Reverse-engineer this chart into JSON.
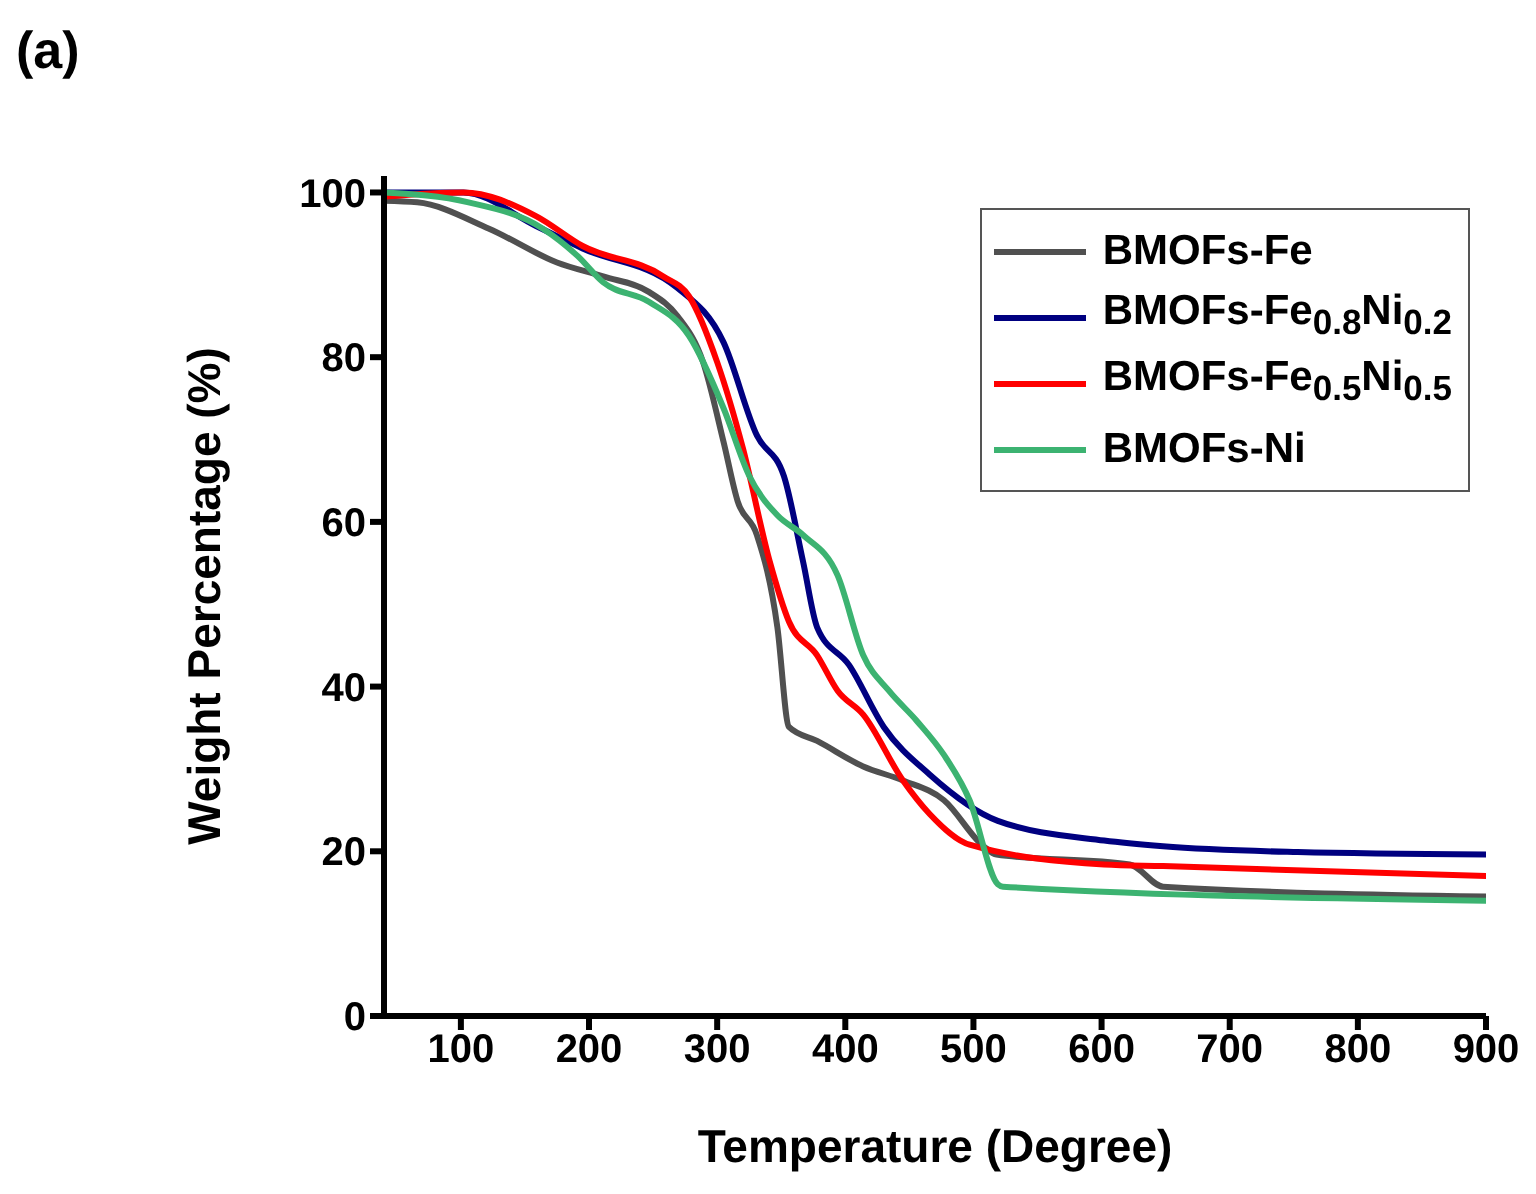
{
  "chart_data": {
    "type": "line",
    "title": "(a)",
    "xlabel": "Temperature (Degree)",
    "ylabel": "Weight Percentage (%)",
    "xlim": [
      40,
      900
    ],
    "ylim": [
      0,
      102
    ],
    "xticks": [
      100,
      200,
      300,
      400,
      500,
      600,
      700,
      800,
      900
    ],
    "yticks": [
      0,
      20,
      40,
      60,
      80,
      100
    ],
    "legend": "top right",
    "grid": false,
    "series": [
      {
        "name": "BMOFs-Fe",
        "color": "#505050",
        "x": [
          40,
          66,
          122,
          175,
          211,
          247,
          269,
          289,
          305,
          316,
          331,
          347,
          356,
          378,
          414,
          445,
          477,
          508,
          518,
          622,
          648,
          900
        ],
        "values": [
          99,
          98.8,
          95.6,
          91.5,
          89.8,
          87.9,
          85,
          79.4,
          69.7,
          62.5,
          58.4,
          47.2,
          35.1,
          33.4,
          30.3,
          28.6,
          26.2,
          20.6,
          19.6,
          18.4,
          15.7,
          14.5
        ]
      },
      {
        "name": "BMOFs-Fe$_{0.8}$Ni$_{0.2}$",
        "color": "#000080",
        "x": [
          40,
          102,
          159,
          195,
          269,
          305,
          331,
          352,
          367,
          378,
          403,
          430,
          466,
          519,
          602,
          648,
          753,
          900
        ],
        "values": [
          100,
          100,
          95.9,
          93.2,
          88.4,
          81.8,
          70.5,
          65.6,
          55.2,
          47.2,
          42.6,
          35.1,
          29.3,
          23.7,
          21.3,
          20.6,
          19.9,
          19.6
        ]
      },
      {
        "name": "BMOFs-Fe$_{0.5}$Ni$_{0.5}$",
        "color": "#ff0000",
        "x": [
          40,
          102,
          159,
          195,
          258,
          278,
          300,
          320,
          341,
          356,
          378,
          394,
          414,
          445,
          466,
          497,
          602,
          648,
          900
        ],
        "values": [
          99.5,
          100,
          97.1,
          93.5,
          89.8,
          87.4,
          79.4,
          69,
          55.2,
          47.9,
          43.8,
          39.5,
          36.6,
          28.6,
          24.5,
          20.8,
          18.4,
          18.2,
          17
        ]
      },
      {
        "name": "BMOFs-Ni",
        "color": "#3cb371",
        "x": [
          40,
          106,
          164,
          191,
          211,
          247,
          278,
          305,
          325,
          347,
          367,
          394,
          414,
          434,
          456,
          477,
          497,
          519,
          523,
          900
        ],
        "values": [
          100,
          98.8,
          95.6,
          92.3,
          89.1,
          86.7,
          82.6,
          73.8,
          65.6,
          60.8,
          58.4,
          53.5,
          43.8,
          39.5,
          35.8,
          31.7,
          26.2,
          16,
          15.7,
          14
        ]
      }
    ]
  }
}
